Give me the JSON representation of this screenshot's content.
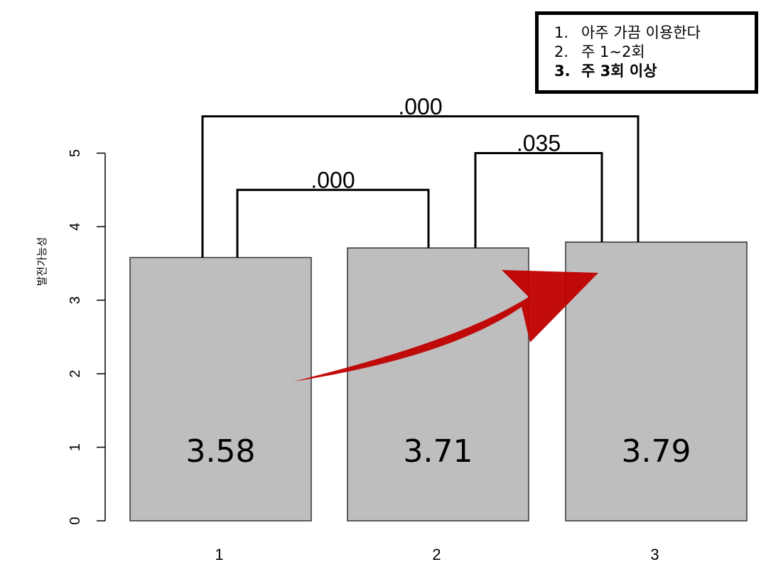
{
  "chart_data": {
    "type": "bar",
    "categories": [
      "1",
      "2",
      "3"
    ],
    "values": [
      3.58,
      3.71,
      3.79
    ],
    "value_labels": [
      "3.58",
      "3.71",
      "3.79"
    ],
    "ylabel": "발전가능성",
    "ylim": [
      0,
      5.5
    ],
    "yticks": [
      0,
      1,
      2,
      3,
      4,
      5
    ],
    "ytick_labels": [
      "0",
      "1",
      "2",
      "3",
      "4",
      "5"
    ],
    "bar_color": "#bebebe",
    "grid": false,
    "legend_position": "top-right",
    "legend": [
      {
        "num": "1.",
        "label": "아주 가끔 이용한다",
        "bold": false
      },
      {
        "num": "2.",
        "label": "주 1~2회",
        "bold": false
      },
      {
        "num": "3.",
        "label": "주 3회 이상",
        "bold": true
      }
    ],
    "comparisons": [
      {
        "from": 1,
        "to": 3,
        "y": 5.5,
        "label": ".000"
      },
      {
        "from": 1,
        "to": 2,
        "y": 4.5,
        "label": ".000"
      },
      {
        "from": 2,
        "to": 3,
        "y": 5.0,
        "label": ".035"
      }
    ],
    "annotation": {
      "type": "arrow",
      "color": "#c00000",
      "direction": "increasing"
    }
  }
}
